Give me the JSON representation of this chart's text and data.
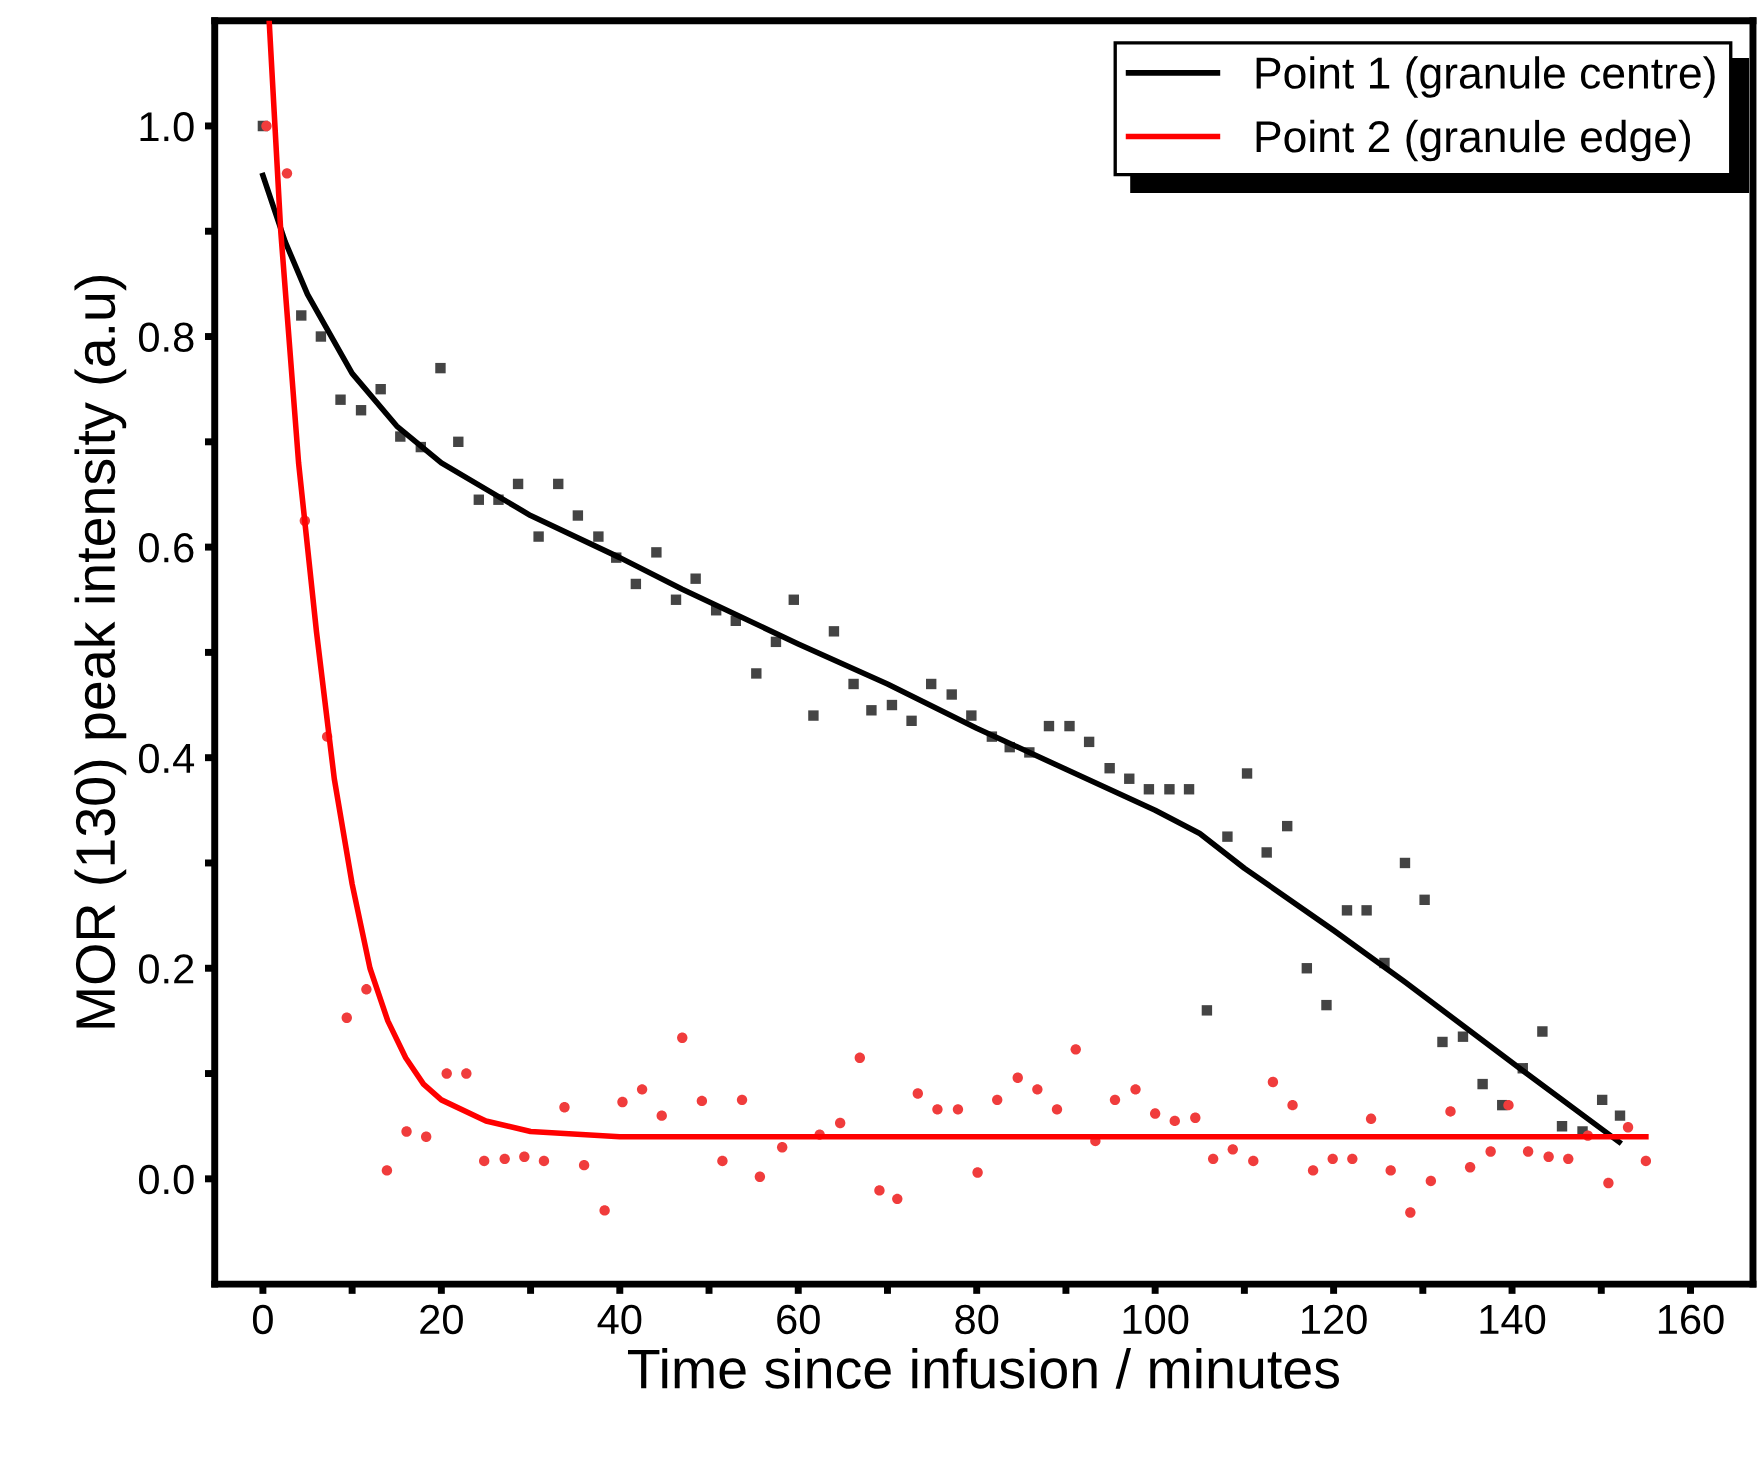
{
  "chart_data": {
    "type": "scatter",
    "xlabel": "Time since infusion / minutes",
    "ylabel": "MOR (130) peak intensity (a.u)",
    "xlim": [
      -5.4,
      167
    ],
    "ylim": [
      -0.1,
      1.1
    ],
    "xticks": [
      0,
      {
        "value": 10,
        "label": null
      },
      20,
      {
        "value": 30,
        "label": null
      },
      40,
      {
        "value": 50,
        "label": null
      },
      60,
      {
        "value": 70,
        "label": null
      },
      80,
      {
        "value": 90,
        "label": null
      },
      100,
      {
        "value": 110,
        "label": null
      },
      120,
      {
        "value": 130,
        "label": null
      },
      140,
      {
        "value": 150,
        "label": null
      },
      160
    ],
    "yticks": [
      {
        "value": 0,
        "label": "0.0"
      },
      {
        "value": 0.1,
        "label": null
      },
      {
        "value": 0.2,
        "label": "0.2"
      },
      {
        "value": 0.3,
        "label": null
      },
      {
        "value": 0.4,
        "label": "0.4"
      },
      {
        "value": 0.5,
        "label": null
      },
      {
        "value": 0.6,
        "label": "0.6"
      },
      {
        "value": 0.7,
        "label": null
      },
      {
        "value": 0.8,
        "label": "0.8"
      },
      {
        "value": 0.9,
        "label": null
      },
      {
        "value": 1.0,
        "label": "1.0"
      }
    ],
    "grid": false,
    "legend": "top right",
    "series": [
      {
        "marker": "square",
        "color": "#444444",
        "x": [
          0,
          4.3,
          6.5,
          8.7,
          11.0,
          13.2,
          15.4,
          17.7,
          19.9,
          21.9,
          24.2,
          26.4,
          28.6,
          30.9,
          33.1,
          35.3,
          37.6,
          39.6,
          41.8,
          44.1,
          46.3,
          48.5,
          50.8,
          53.0,
          55.3,
          57.5,
          59.5,
          61.7,
          64.0,
          66.2,
          68.2,
          70.5,
          72.7,
          74.9,
          77.2,
          79.4,
          81.7,
          83.7,
          85.9,
          88.1,
          90.4,
          92.6,
          94.9,
          97.1,
          99.3,
          101.6,
          103.8,
          105.8,
          108.1,
          110.3,
          112.5,
          114.8,
          117.0,
          119.2,
          121.5,
          123.7,
          125.7,
          128.0,
          130.2,
          132.2,
          134.5,
          136.7,
          138.9,
          141.2,
          143.4,
          145.6,
          147.9,
          150.1,
          152.1
        ],
        "values": [
          1.0,
          0.82,
          0.8,
          0.74,
          0.73,
          0.75,
          0.705,
          0.695,
          0.77,
          0.7,
          0.645,
          0.645,
          0.66,
          0.61,
          0.66,
          0.63,
          0.61,
          0.59,
          0.565,
          0.595,
          0.55,
          0.57,
          0.54,
          0.53,
          0.48,
          0.51,
          0.55,
          0.44,
          0.52,
          0.47,
          0.445,
          0.45,
          0.435,
          0.47,
          0.46,
          0.44,
          0.42,
          0.41,
          0.405,
          0.43,
          0.43,
          0.415,
          0.39,
          0.38,
          0.37,
          0.37,
          0.37,
          0.16,
          0.325,
          0.385,
          0.31,
          0.335,
          0.2,
          0.165,
          0.255,
          0.255,
          0.205,
          0.3,
          0.265,
          0.13,
          0.135,
          0.09,
          0.07,
          0.105,
          0.14,
          0.05,
          0.045,
          0.075,
          0.06
        ]
      },
      {
        "marker": "circle",
        "color": "#f03c3c",
        "x": [
          0.4,
          2.7,
          4.7,
          7.2,
          9.4,
          11.6,
          13.9,
          16.1,
          18.3,
          20.6,
          22.8,
          24.8,
          27.1,
          29.3,
          31.5,
          33.8,
          36.0,
          38.3,
          40.3,
          42.5,
          44.7,
          47.0,
          49.2,
          51.5,
          53.7,
          55.7,
          58.2,
          62.4,
          64.7,
          66.9,
          69.1,
          71.1,
          73.4,
          75.6,
          77.9,
          80.1,
          82.3,
          84.6,
          86.8,
          89.0,
          91.1,
          93.3,
          95.5,
          97.8,
          100.0,
          102.2,
          104.5,
          106.5,
          108.7,
          111.0,
          113.2,
          115.4,
          117.7,
          119.9,
          122.1,
          124.2,
          126.4,
          128.6,
          130.9,
          133.1,
          135.3,
          137.6,
          139.6,
          141.8,
          144.1,
          146.3,
          148.5,
          150.8,
          153.0,
          155.0
        ],
        "values": [
          1.0,
          0.955,
          0.625,
          0.42,
          0.153,
          0.18,
          0.008,
          0.045,
          0.04,
          0.1,
          0.1,
          0.017,
          0.019,
          0.021,
          0.017,
          0.068,
          0.013,
          -0.03,
          0.073,
          0.085,
          0.06,
          0.134,
          0.074,
          0.017,
          0.075,
          0.002,
          0.03,
          0.042,
          0.053,
          0.115,
          -0.011,
          -0.019,
          0.081,
          0.066,
          0.066,
          0.006,
          0.075,
          0.096,
          0.085,
          0.066,
          0.123,
          0.036,
          0.075,
          0.085,
          0.062,
          0.055,
          0.058,
          0.019,
          0.028,
          0.017,
          0.092,
          0.07,
          0.008,
          0.019,
          0.019,
          0.057,
          0.008,
          -0.032,
          -0.002,
          0.064,
          0.011,
          0.026,
          0.07,
          0.026,
          0.021,
          0.019,
          0.041,
          -0.004,
          0.049,
          0.017
        ]
      },
      {
        "type": "line",
        "name": "Point 1 (granule centre)",
        "color": "#000000",
        "x": [
          0,
          2.5,
          5,
          10,
          15,
          20,
          30,
          40,
          47,
          60,
          70,
          80,
          90,
          100,
          105,
          110,
          120,
          128,
          141,
          152
        ],
        "values": [
          0.953,
          0.89,
          0.84,
          0.765,
          0.715,
          0.68,
          0.63,
          0.59,
          0.56,
          0.508,
          0.47,
          0.428,
          0.389,
          0.35,
          0.328,
          0.295,
          0.236,
          0.187,
          0.104,
          0.035
        ]
      },
      {
        "type": "line",
        "name": "Point 2 (granule edge)",
        "color": "#ff0000",
        "x": [
          0.7,
          2,
          4,
          6,
          8,
          10,
          12,
          14,
          16,
          18,
          20,
          25,
          30,
          40,
          155
        ],
        "values": [
          1.1,
          0.9,
          0.68,
          0.52,
          0.38,
          0.28,
          0.2,
          0.15,
          0.115,
          0.09,
          0.075,
          0.055,
          0.045,
          0.04,
          0.04
        ]
      }
    ]
  }
}
